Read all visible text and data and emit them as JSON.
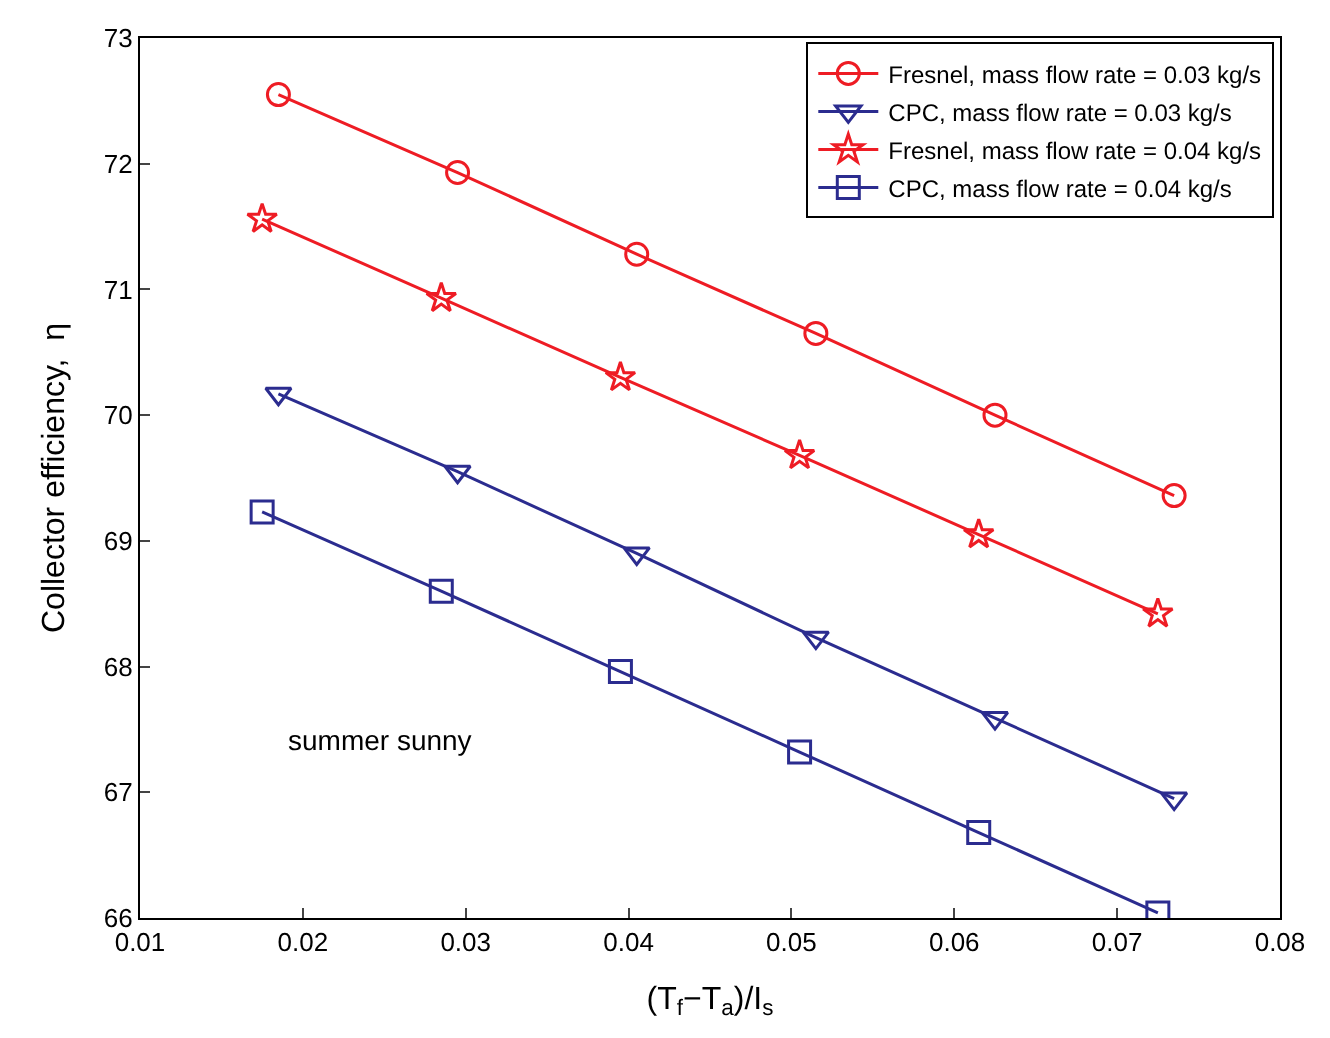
{
  "chart_data": {
    "type": "line",
    "xlabel": "(T$_{f}$−T$_{a}$)/I$_{s}$",
    "ylabel": "Collector efficiency,  η",
    "xlim": [
      0.01,
      0.08
    ],
    "xticks": [
      {
        "value": 0.01,
        "label": "0.01"
      },
      {
        "value": 0.02,
        "label": "0.02"
      },
      {
        "value": 0.03,
        "label": "0.03"
      },
      {
        "value": 0.04,
        "label": "0.04"
      },
      {
        "value": 0.05,
        "label": "0.05"
      },
      {
        "value": 0.06,
        "label": "0.06"
      },
      {
        "value": 0.07,
        "label": "0.07"
      },
      {
        "value": 0.08,
        "label": "0.08"
      }
    ],
    "ylim": [
      66,
      73
    ],
    "yticks": [
      66,
      67,
      68,
      69,
      70,
      71,
      72,
      73
    ],
    "legend": "top right",
    "line_style": "solid",
    "annotations": [
      "summer sunny"
    ],
    "series": [
      {
        "name": "Fresnel, mass flow rate = 0.03 kg/s",
        "color": "#ee1c24",
        "marker": "circle",
        "x": [
          0.0185,
          0.0295,
          0.0405,
          0.0515,
          0.0625,
          0.0735
        ],
        "values": [
          72.55,
          71.93,
          71.28,
          70.65,
          70.0,
          69.36
        ]
      },
      {
        "name": "CPC, mass flow rate = 0.03 kg/s",
        "color": "#2b2c8f",
        "marker": "triangle",
        "x": [
          0.0185,
          0.0295,
          0.0405,
          0.0515,
          0.0625,
          0.0735
        ],
        "values": [
          70.17,
          69.55,
          68.9,
          68.23,
          67.59,
          66.95
        ]
      },
      {
        "name": "Fresnel, mass flow rate = 0.04 kg/s",
        "color": "#ee1c24",
        "marker": "star",
        "x": [
          0.0175,
          0.0285,
          0.0395,
          0.0505,
          0.0615,
          0.0725
        ],
        "values": [
          71.56,
          70.93,
          70.3,
          69.68,
          69.05,
          68.42
        ]
      },
      {
        "name": "CPC, mass flow rate = 0.04 kg/s",
        "color": "#2b2c8f",
        "marker": "square",
        "x": [
          0.0175,
          0.0285,
          0.0395,
          0.0505,
          0.0615,
          0.0725
        ],
        "values": [
          69.23,
          68.6,
          67.96,
          67.32,
          66.68,
          66.04
        ]
      }
    ]
  }
}
